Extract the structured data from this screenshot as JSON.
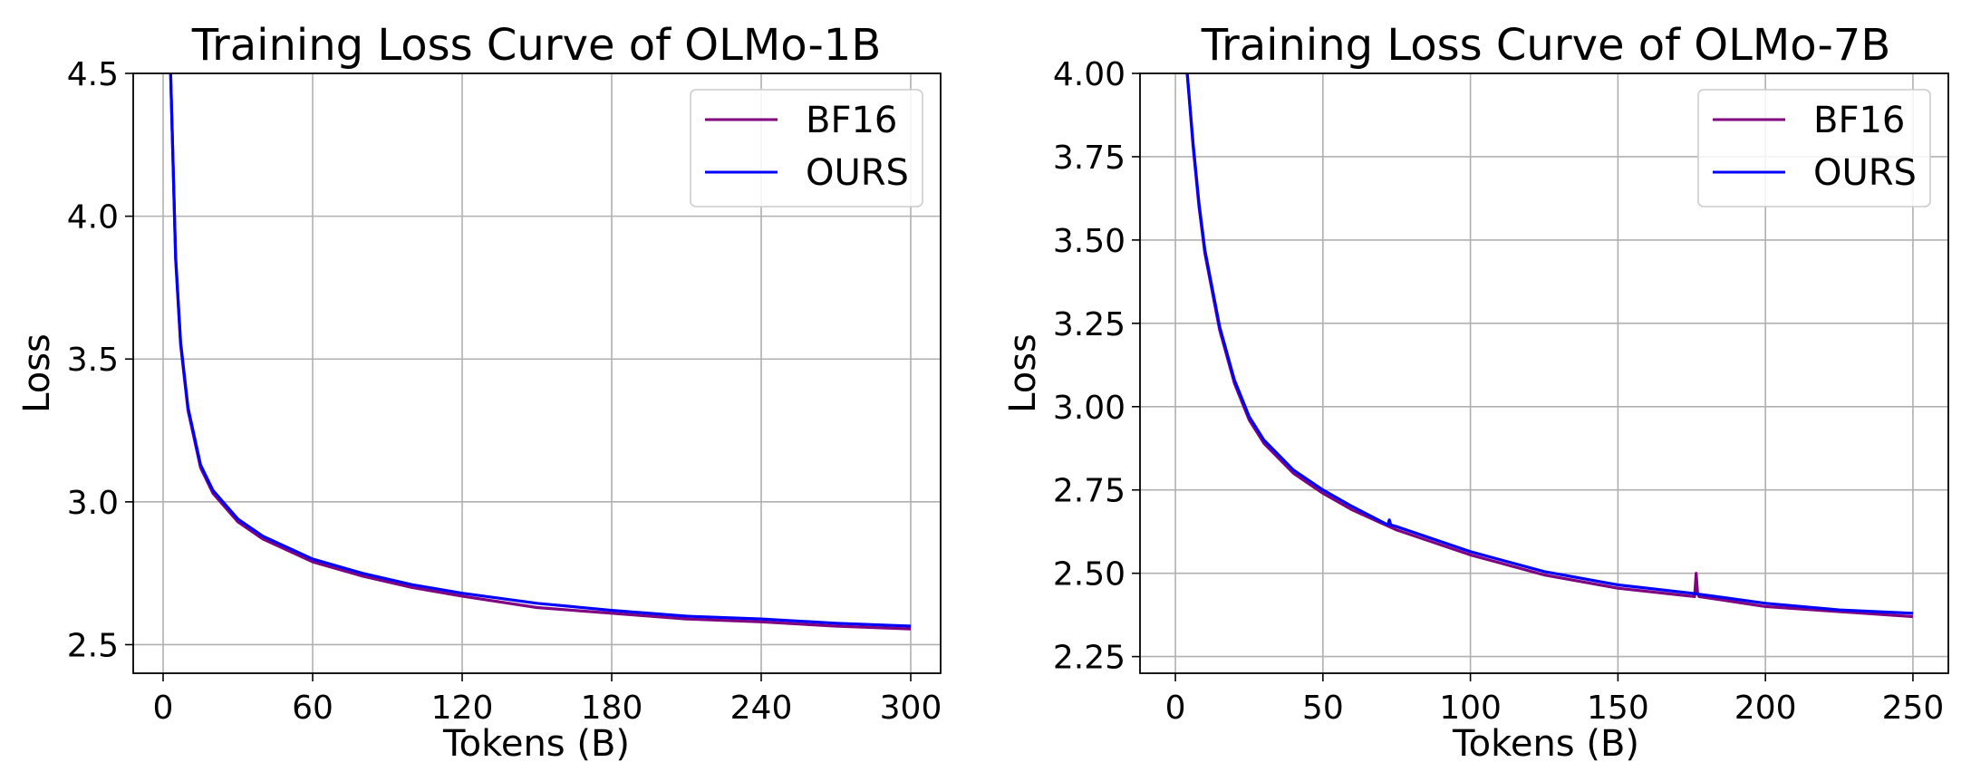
{
  "chart_data": [
    {
      "type": "line",
      "title": "Training Loss Curve of OLMo-1B",
      "xlabel": "Tokens (B)",
      "ylabel": "Loss",
      "xlim": [
        -12,
        312
      ],
      "ylim": [
        2.4,
        4.5
      ],
      "xticks": [
        0,
        60,
        120,
        180,
        240,
        300
      ],
      "yticks": [
        2.5,
        3.0,
        3.5,
        4.0,
        4.5
      ],
      "ytick_labels": [
        "2.5",
        "3.0",
        "3.5",
        "4.0",
        "4.5"
      ],
      "grid": true,
      "legend": "upper right",
      "series": [
        {
          "name": "BF16",
          "color": "#800080",
          "x": [
            3,
            5,
            7,
            10,
            15,
            20,
            30,
            40,
            60,
            80,
            100,
            120,
            150,
            180,
            210,
            240,
            270,
            300
          ],
          "y": [
            4.5,
            3.85,
            3.55,
            3.32,
            3.12,
            3.03,
            2.93,
            2.87,
            2.79,
            2.74,
            2.7,
            2.67,
            2.63,
            2.61,
            2.59,
            2.58,
            2.565,
            2.555
          ]
        },
        {
          "name": "OURS",
          "color": "#0000ff",
          "x": [
            3,
            5,
            7,
            10,
            15,
            20,
            30,
            40,
            60,
            80,
            100,
            120,
            150,
            180,
            210,
            240,
            270,
            300
          ],
          "y": [
            4.5,
            3.86,
            3.56,
            3.33,
            3.13,
            3.04,
            2.94,
            2.88,
            2.8,
            2.75,
            2.71,
            2.68,
            2.645,
            2.62,
            2.6,
            2.59,
            2.575,
            2.565
          ]
        }
      ]
    },
    {
      "type": "line",
      "title": "Training Loss Curve of OLMo-7B",
      "xlabel": "Tokens (B)",
      "ylabel": "Loss",
      "xlim": [
        -12,
        262
      ],
      "ylim": [
        2.2,
        4.0
      ],
      "xticks": [
        0,
        50,
        100,
        150,
        200,
        250
      ],
      "yticks": [
        2.25,
        2.5,
        2.75,
        3.0,
        3.25,
        3.5,
        3.75,
        4.0
      ],
      "ytick_labels": [
        "2.25",
        "2.50",
        "2.75",
        "3.00",
        "3.25",
        "3.50",
        "3.75",
        "4.00"
      ],
      "grid": true,
      "legend": "upper right",
      "series": [
        {
          "name": "BF16",
          "color": "#800080",
          "x": [
            4,
            6,
            8,
            10,
            15,
            20,
            25,
            30,
            40,
            50,
            60,
            75,
            100,
            125,
            150,
            176,
            176.5,
            177,
            177.5,
            200,
            225,
            250
          ],
          "y": [
            4.0,
            3.78,
            3.6,
            3.46,
            3.23,
            3.07,
            2.96,
            2.89,
            2.8,
            2.74,
            2.69,
            2.63,
            2.555,
            2.495,
            2.455,
            2.43,
            2.5,
            2.44,
            2.43,
            2.4,
            2.385,
            2.37
          ]
        },
        {
          "name": "OURS",
          "color": "#0000ff",
          "x": [
            4,
            6,
            8,
            10,
            15,
            20,
            25,
            30,
            40,
            50,
            60,
            72,
            72.5,
            73,
            75,
            100,
            125,
            150,
            175,
            200,
            225,
            250
          ],
          "y": [
            4.0,
            3.79,
            3.61,
            3.47,
            3.24,
            3.08,
            2.97,
            2.9,
            2.81,
            2.75,
            2.7,
            2.645,
            2.66,
            2.645,
            2.64,
            2.565,
            2.505,
            2.465,
            2.44,
            2.41,
            2.39,
            2.38
          ]
        }
      ]
    }
  ]
}
